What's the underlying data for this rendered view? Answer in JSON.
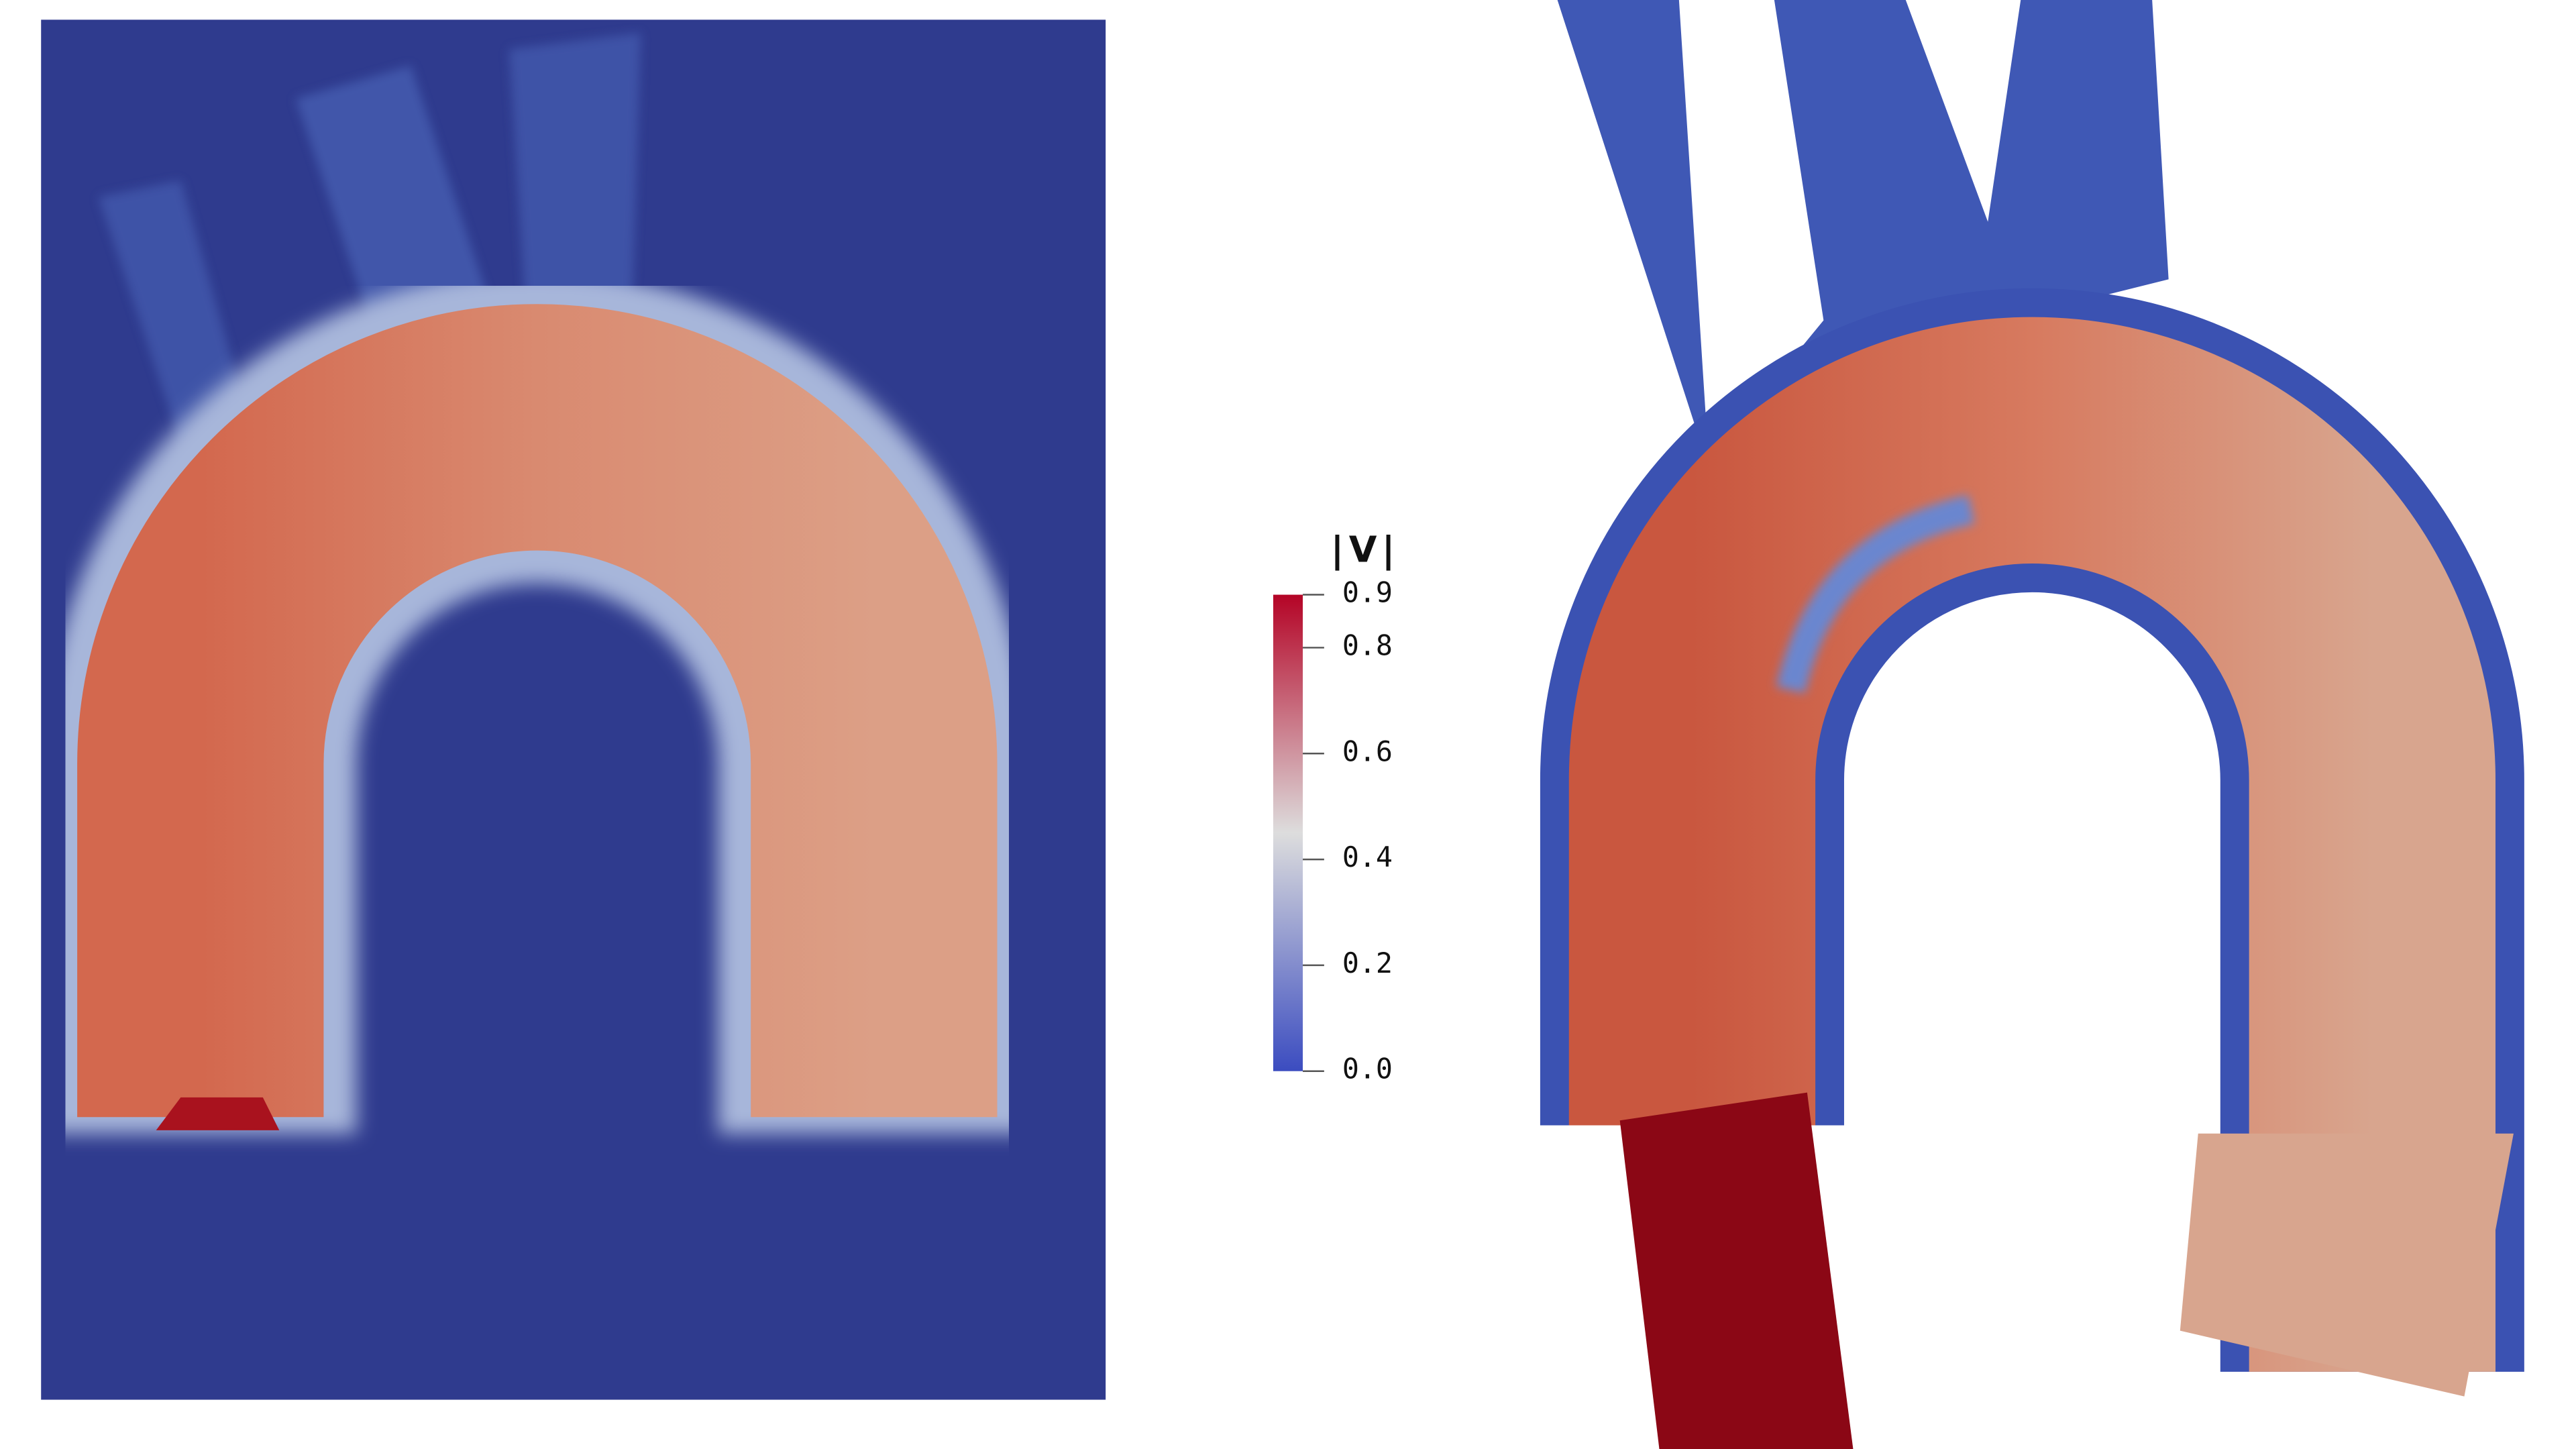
{
  "chart_data": {
    "type": "colorbar",
    "title": "|V|",
    "range": [
      0,
      0.9
    ],
    "colormap": [
      "#3b4cc0",
      "#dddddd",
      "#b40426"
    ],
    "ticks": [
      {
        "value": 0,
        "label": "0.0"
      },
      0.2,
      0.4,
      0.6,
      0.8,
      0.9
    ]
  }
}
